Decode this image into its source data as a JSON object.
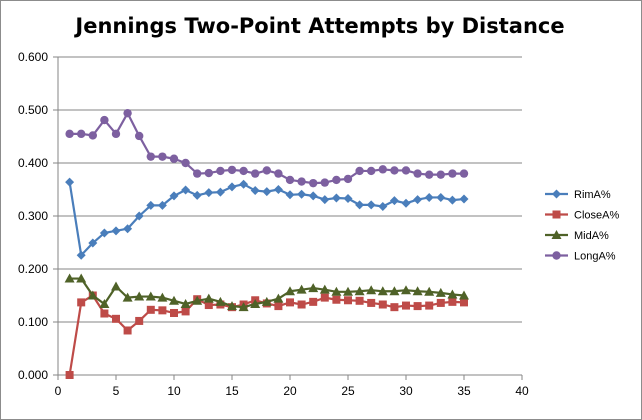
{
  "chart_data": {
    "type": "line",
    "title": "Jennings Two-Point Attempts by Distance",
    "xlabel": "",
    "ylabel": "",
    "xlim": [
      0,
      40
    ],
    "ylim": [
      0,
      0.6
    ],
    "xticks": [
      "0",
      "5",
      "10",
      "15",
      "20",
      "25",
      "30",
      "35",
      "40"
    ],
    "yticks": [
      "0.000",
      "0.100",
      "0.200",
      "0.300",
      "0.400",
      "0.500",
      "0.600"
    ],
    "grid": "horizontal",
    "legend_position": "right",
    "x": [
      1,
      2,
      3,
      4,
      5,
      6,
      7,
      8,
      9,
      10,
      11,
      12,
      13,
      14,
      15,
      16,
      17,
      18,
      19,
      20,
      21,
      22,
      23,
      24,
      25,
      26,
      27,
      28,
      29,
      30,
      31,
      32,
      33,
      34,
      35
    ],
    "series": [
      {
        "name": "RimA%",
        "color": "#4a7ebb",
        "marker": "diamond",
        "values": [
          0.364,
          0.226,
          0.249,
          0.268,
          0.272,
          0.276,
          0.3,
          0.32,
          0.32,
          0.338,
          0.349,
          0.339,
          0.344,
          0.345,
          0.355,
          0.36,
          0.348,
          0.346,
          0.35,
          0.34,
          0.341,
          0.338,
          0.331,
          0.334,
          0.333,
          0.321,
          0.321,
          0.318,
          0.329,
          0.324,
          0.331,
          0.335,
          0.335,
          0.33,
          0.332
        ]
      },
      {
        "name": "CloseA%",
        "color": "#be4b48",
        "marker": "square",
        "values": [
          0.0,
          0.137,
          0.15,
          0.116,
          0.106,
          0.084,
          0.102,
          0.123,
          0.122,
          0.117,
          0.12,
          0.143,
          0.132,
          0.133,
          0.128,
          0.133,
          0.141,
          0.135,
          0.13,
          0.137,
          0.133,
          0.138,
          0.146,
          0.142,
          0.141,
          0.14,
          0.136,
          0.133,
          0.128,
          0.131,
          0.13,
          0.131,
          0.136,
          0.138,
          0.137
        ]
      },
      {
        "name": "MidA%",
        "color": "#4f6228",
        "marker": "triangle",
        "values": [
          0.182,
          0.182,
          0.15,
          0.134,
          0.167,
          0.146,
          0.148,
          0.148,
          0.146,
          0.14,
          0.134,
          0.14,
          0.144,
          0.138,
          0.13,
          0.128,
          0.134,
          0.138,
          0.144,
          0.158,
          0.161,
          0.164,
          0.161,
          0.157,
          0.157,
          0.158,
          0.16,
          0.158,
          0.158,
          0.16,
          0.158,
          0.157,
          0.155,
          0.152,
          0.15
        ]
      },
      {
        "name": "LongA%",
        "color": "#7d60a0",
        "marker": "circle",
        "values": [
          0.455,
          0.455,
          0.452,
          0.481,
          0.455,
          0.494,
          0.451,
          0.412,
          0.412,
          0.408,
          0.4,
          0.38,
          0.381,
          0.385,
          0.387,
          0.385,
          0.38,
          0.386,
          0.38,
          0.368,
          0.365,
          0.362,
          0.363,
          0.368,
          0.37,
          0.385,
          0.385,
          0.388,
          0.386,
          0.386,
          0.38,
          0.378,
          0.378,
          0.38,
          0.38
        ]
      }
    ]
  }
}
